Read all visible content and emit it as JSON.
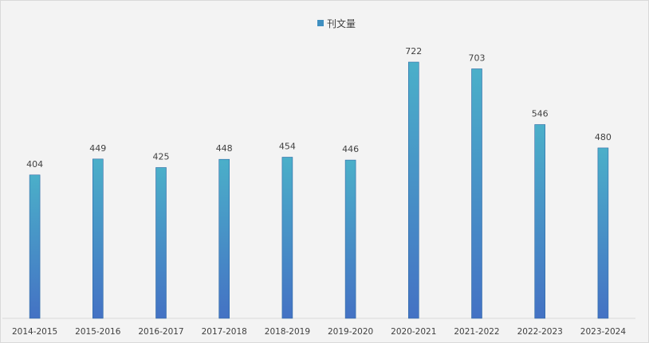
{
  "chart_data": {
    "type": "bar",
    "categories": [
      "2014-2015",
      "2015-2016",
      "2016-2017",
      "2017-2018",
      "2018-2019",
      "2019-2020",
      "2020-2021",
      "2021-2022",
      "2022-2023",
      "2023-2024"
    ],
    "series": [
      {
        "name": "刊文量",
        "values": [
          404,
          449,
          425,
          448,
          454,
          446,
          722,
          703,
          546,
          480
        ]
      }
    ],
    "data_labels": [
      "404",
      "449",
      "425",
      "448",
      "454",
      "446",
      "722",
      "703",
      "546",
      "480"
    ],
    "title": "",
    "xlabel": "",
    "ylabel": "",
    "ylim": [
      0,
      722
    ],
    "grid": false,
    "legend_placement": "top-center",
    "colors": {
      "bar_top": "#4bafc9",
      "bar_bottom": "#4472c4",
      "legend_swatch": "#3f8fc0",
      "axis": "#d9d9d9",
      "background": "#f3f3f3"
    }
  }
}
